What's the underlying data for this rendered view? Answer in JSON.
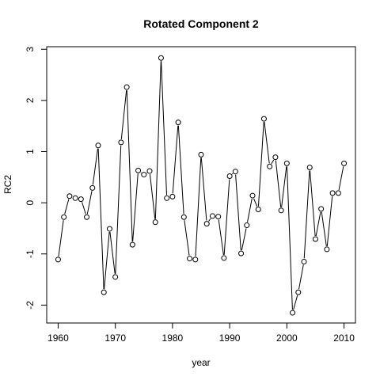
{
  "chart_data": {
    "type": "line",
    "title": "Rotated Component 2",
    "xlabel": "year",
    "ylabel": "RC2",
    "xlim": [
      1958,
      2012
    ],
    "ylim": [
      -2.35,
      3.05
    ],
    "x_ticks": [
      "1960",
      "1970",
      "1980",
      "1990",
      "2000",
      "2010"
    ],
    "y_ticks": [
      "-2",
      "-1",
      "0",
      "1",
      "2",
      "3"
    ],
    "grid": false,
    "legend": "none",
    "marker": "open-circle",
    "x": [
      1960,
      1961,
      1962,
      1963,
      1964,
      1965,
      1966,
      1967,
      1968,
      1969,
      1970,
      1971,
      1972,
      1973,
      1974,
      1975,
      1976,
      1977,
      1978,
      1979,
      1980,
      1981,
      1982,
      1983,
      1984,
      1985,
      1986,
      1987,
      1988,
      1989,
      1990,
      1991,
      1992,
      1993,
      1994,
      1995,
      1996,
      1997,
      1998,
      1999,
      2000,
      2001,
      2002,
      2003,
      2004,
      2005,
      2006,
      2007,
      2008,
      2009,
      2010
    ],
    "y": [
      -1.11,
      -0.28,
      0.13,
      0.09,
      0.07,
      -0.28,
      0.29,
      1.12,
      -1.75,
      -0.51,
      -1.45,
      1.18,
      2.26,
      -0.82,
      0.63,
      0.55,
      0.62,
      -0.38,
      2.83,
      0.09,
      0.12,
      1.57,
      -0.28,
      -1.09,
      -1.11,
      0.94,
      -0.41,
      -0.26,
      -0.27,
      -1.08,
      0.52,
      0.61,
      -0.99,
      -0.44,
      0.14,
      -0.13,
      1.64,
      0.71,
      0.89,
      -0.15,
      0.77,
      -2.15,
      -1.75,
      -1.15,
      0.69,
      -0.71,
      -0.12,
      -0.91,
      0.19,
      0.19,
      0.77
    ]
  }
}
